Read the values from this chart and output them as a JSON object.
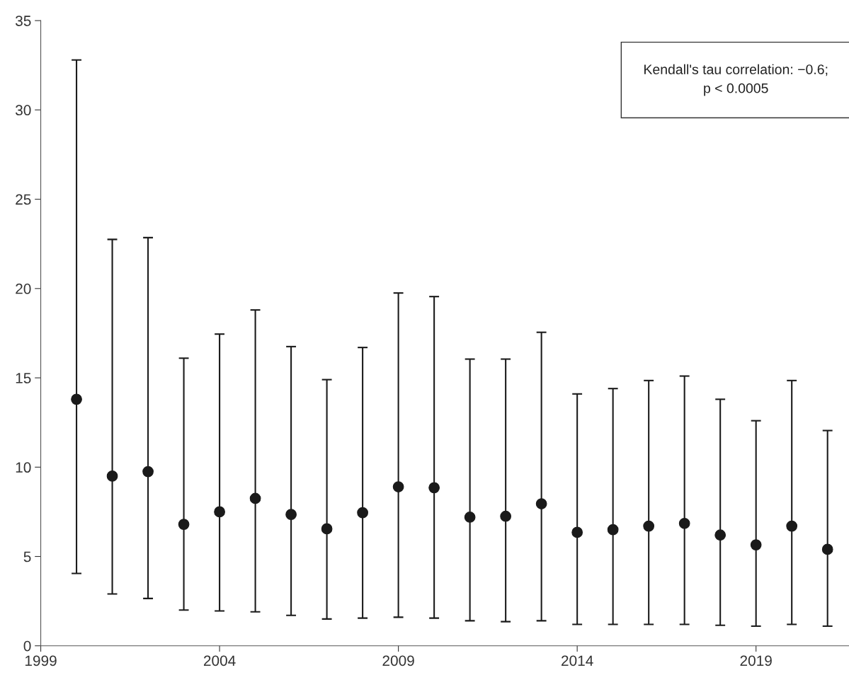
{
  "chart_data": {
    "type": "scatter",
    "marker": "circle",
    "color": "#1a1a1a",
    "x": [
      2000,
      2001,
      2002,
      2003,
      2004,
      2005,
      2006,
      2007,
      2008,
      2009,
      2010,
      2011,
      2012,
      2013,
      2014,
      2015,
      2016,
      2017,
      2018,
      2019,
      2020,
      2021
    ],
    "values": [
      13.8,
      9.5,
      9.75,
      6.8,
      7.5,
      8.25,
      7.35,
      6.55,
      7.45,
      8.9,
      8.85,
      7.2,
      7.25,
      7.95,
      6.35,
      6.5,
      6.7,
      6.85,
      6.2,
      5.65,
      6.7,
      5.4
    ],
    "errors": [
      [
        4.05,
        32.8
      ],
      [
        2.9,
        22.75
      ],
      [
        2.65,
        22.85
      ],
      [
        2.0,
        16.1
      ],
      [
        1.95,
        17.45
      ],
      [
        1.9,
        18.8
      ],
      [
        1.7,
        16.75
      ],
      [
        1.5,
        14.9
      ],
      [
        1.55,
        16.7
      ],
      [
        1.6,
        19.75
      ],
      [
        1.55,
        19.55
      ],
      [
        1.4,
        16.05
      ],
      [
        1.35,
        16.05
      ],
      [
        1.4,
        17.55
      ],
      [
        1.2,
        14.1
      ],
      [
        1.2,
        14.4
      ],
      [
        1.2,
        14.85
      ],
      [
        1.2,
        15.1
      ],
      [
        1.15,
        13.8
      ],
      [
        1.1,
        12.6
      ],
      [
        1.2,
        14.85
      ],
      [
        1.1,
        12.05
      ]
    ],
    "xlim": [
      1999,
      2021.6
    ],
    "xticks": [
      1999,
      2004,
      2009,
      2014,
      2019
    ],
    "ylim": [
      0,
      35
    ],
    "yticks": [
      0,
      5,
      10,
      15,
      20,
      25,
      30,
      35
    ],
    "grid": false,
    "legend": false,
    "annotations": [
      "Kendall's tau correlation: −0.6;\np < 0.0005"
    ]
  }
}
